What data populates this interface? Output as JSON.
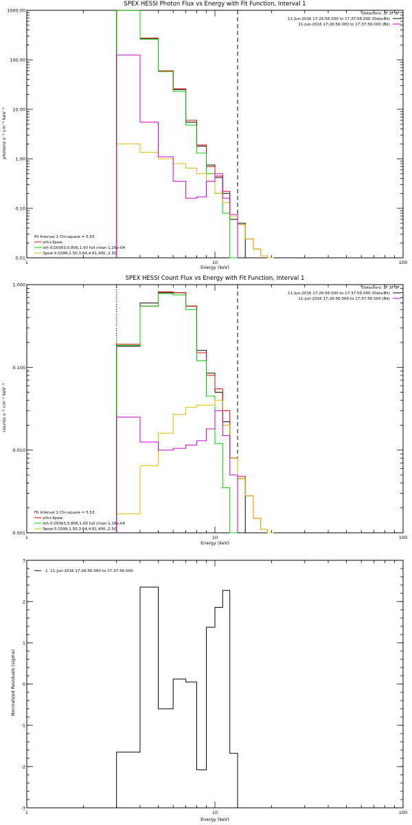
{
  "chart_data": [
    {
      "type": "line",
      "title": "SPEX HESSI Photon Flux vs Energy with Fit Function, Interval 1",
      "xlabel": "Energy (keV)",
      "ylabel": "photons s⁻¹ cm⁻² keV⁻¹",
      "x_scale": "log",
      "y_scale": "log",
      "xlim": [
        1,
        100
      ],
      "ylim": [
        0.01,
        1000
      ],
      "x_ticks": [
        "1",
        "10",
        "100"
      ],
      "y_ticks": [
        "0.01",
        "0.10",
        "1.00",
        "10.00",
        "100.00",
        "1000.00"
      ],
      "y_tick_values": [
        0.01,
        0.1,
        1,
        10,
        100,
        1000
      ],
      "info_lines": [
        {
          "text": "Detectors: 1F 3F 8F",
          "color": ""
        },
        {
          "text": "11-Jun-2016 17:26:56.000 to 17:37:56.000 (Data-Bk)",
          "color": "#000000"
        },
        {
          "text": "11-Jun-2016 17:26:56.000 to 17:37:56.000 (Bk)",
          "color": "#cc00cc"
        }
      ],
      "fit_text": "Fit Interval 1   Chi-square = 5.53",
      "legend": [
        {
          "text": "vth+3pow",
          "color": "#dd0000"
        },
        {
          "text": "vth 0.00363,0.806,1.00  full chian 1.26e-04",
          "color": "#00cc00"
        },
        {
          "text": "3pow 0.0399,1.50,3.64,4.81,400.,2.50",
          "color": "#ddbb00"
        }
      ],
      "vlines": [
        {
          "x": 3.0,
          "style": "dotted",
          "color": "#000000"
        },
        {
          "x": 13.2,
          "style": "dashed",
          "color": "#000000"
        }
      ],
      "bin_edges": [
        3.0,
        4.0,
        5.0,
        6.0,
        7.0,
        8.0,
        9.0,
        10.0,
        11.0,
        12.0,
        13.2,
        14.5,
        16.0,
        17.5,
        19.0,
        20.5
      ],
      "series": [
        {
          "name": "11-Jun-2016 17:26:56.000 to 17:37:56.000 (Data-Bk)",
          "color": "#000000",
          "values": [
            1000,
            270,
            60,
            25,
            5.5,
            1.8,
            0.75,
            0.42,
            0.2,
            0.06,
            0.05,
            null,
            null,
            null,
            null
          ]
        },
        {
          "name": "vth+3pow",
          "color": "#dd0000",
          "values": [
            1000,
            275,
            60,
            26,
            6,
            1.9,
            0.7,
            0.45,
            0.22,
            0.075,
            0.047,
            0.024,
            0.015,
            0.011,
            0.01
          ]
        },
        {
          "name": "vth 0.00363,0.806,1.00  full chian 1.26e-04",
          "color": "#00cc00",
          "values": [
            990,
            260,
            58,
            23,
            4.8,
            1.3,
            0.5,
            0.2,
            0.08,
            0.01,
            null,
            null,
            null,
            null,
            null
          ]
        },
        {
          "name": "3pow 0.0399,1.50,3.64,4.81,400.,2.50",
          "color": "#ddbb00",
          "values": [
            2,
            1.35,
            1.0,
            0.8,
            0.65,
            0.5,
            0.35,
            0.2,
            0.13,
            0.07,
            0.047,
            0.024,
            0.015,
            0.011,
            0.01
          ]
        },
        {
          "name": "11-Jun-2016 17:26:56.000 to 17:37:56.000 (Bk)",
          "color": "#cc00cc",
          "values": [
            125,
            5.5,
            1.1,
            0.35,
            0.16,
            0.17,
            0.35,
            0.5,
            0.16,
            0.075,
            null,
            null,
            null,
            null,
            null
          ]
        }
      ]
    },
    {
      "type": "line",
      "title": "SPEX HESSI Count Flux vs Energy with Fit Function, Interval 1",
      "xlabel": "Energy (keV)",
      "ylabel": "counts s⁻¹ cm⁻² keV⁻¹",
      "x_scale": "log",
      "y_scale": "log",
      "xlim": [
        1,
        100
      ],
      "ylim": [
        0.001,
        1
      ],
      "x_ticks": [
        "1",
        "10",
        "100"
      ],
      "y_ticks": [
        "0.001",
        "0.010",
        "0.100",
        "1.000"
      ],
      "y_tick_values": [
        0.001,
        0.01,
        0.1,
        1
      ],
      "info_lines": [
        {
          "text": "Detectors: 1F 3F 8F",
          "color": ""
        },
        {
          "text": "11-Jun-2016 17:26:56.000 to 17:37:56.000 (Data-Bk)",
          "color": "#000000"
        },
        {
          "text": "11-Jun-2016 17:26:56.000 to 17:37:56.000 (Bk)",
          "color": "#cc00cc"
        }
      ],
      "fit_text": "Fit Interval 1   Chi-square = 5.53",
      "legend": [
        {
          "text": "vth+3pow",
          "color": "#dd0000"
        },
        {
          "text": "vth 0.00363,0.806,1.00  full chian 1.26e-04",
          "color": "#00cc00"
        },
        {
          "text": "3pow 0.0399,1.50,3.64,4.81,400.,2.50",
          "color": "#ddbb00"
        }
      ],
      "vlines": [
        {
          "x": 3.0,
          "style": "dotted",
          "color": "#000000"
        },
        {
          "x": 13.2,
          "style": "dashed",
          "color": "#000000"
        }
      ],
      "bin_edges": [
        3.0,
        4.0,
        5.0,
        6.0,
        7.0,
        8.0,
        9.0,
        10.0,
        11.0,
        12.0,
        13.2,
        14.5,
        16.0,
        17.5,
        19.0,
        20.5
      ],
      "series": [
        {
          "name": "11-Jun-2016 17:26:56.000 to 17:37:56.000 (Data-Bk)",
          "color": "#000000",
          "values": [
            0.18,
            0.6,
            0.8,
            0.8,
            0.55,
            0.16,
            0.085,
            0.05,
            0.022,
            0.008,
            0.0045,
            null,
            null,
            null,
            null
          ]
        },
        {
          "name": "vth+3pow",
          "color": "#dd0000",
          "values": [
            0.19,
            0.55,
            0.82,
            0.8,
            0.55,
            0.15,
            0.08,
            0.055,
            0.03,
            0.008,
            0.0048,
            0.0028,
            0.0015,
            0.0011,
            0.001
          ]
        },
        {
          "name": "vth 0.00363,0.806,1.00  full chian 1.26e-04",
          "color": "#00cc00",
          "values": [
            0.185,
            0.55,
            0.78,
            0.75,
            0.5,
            0.12,
            0.045,
            0.012,
            0.0035,
            0.001,
            null,
            null,
            null,
            null,
            null
          ]
        },
        {
          "name": "3pow 0.0399,1.50,3.64,4.81,400.,2.50",
          "color": "#ddbb00",
          "values": [
            0.0017,
            0.0065,
            0.016,
            0.027,
            0.033,
            0.035,
            0.035,
            0.04,
            0.02,
            0.008,
            0.0045,
            0.0028,
            0.0015,
            0.0011,
            0.001
          ]
        },
        {
          "name": "11-Jun-2016 17:26:56.000 to 17:37:56.000 (Bk)",
          "color": "#cc00cc",
          "values": [
            0.025,
            0.0125,
            0.01,
            0.0105,
            0.0115,
            0.013,
            0.018,
            0.03,
            0.015,
            0.005,
            null,
            null,
            null,
            null,
            null
          ]
        }
      ]
    },
    {
      "type": "line",
      "title": "",
      "xlabel": "Energy (keV)",
      "ylabel": "Normalized Residuals (sigma)",
      "x_scale": "log",
      "y_scale": "linear",
      "xlim": [
        1,
        100
      ],
      "ylim": [
        -3,
        3
      ],
      "x_ticks": [
        "1",
        "10",
        "100"
      ],
      "y_ticks": [
        "-3",
        "-2",
        "-1",
        "0",
        "1",
        "2",
        "3"
      ],
      "y_tick_values": [
        -3,
        -2,
        -1,
        0,
        1,
        2,
        3
      ],
      "legend": [
        {
          "text": "1. 11-Jun-2016 17:26:56.000 to 17:37:56.000",
          "color": "#000000"
        }
      ],
      "vlines": [],
      "bin_edges": [
        3.0,
        4.0,
        5.0,
        6.0,
        7.0,
        8.0,
        9.0,
        10.0,
        11.0,
        12.0,
        13.2
      ],
      "series": [
        {
          "name": "1. 11-Jun-2016 17:26:56.000 to 17:37:56.000",
          "color": "#000000",
          "values": [
            -1.65,
            2.35,
            -0.6,
            0.12,
            0.05,
            -2.08,
            1.38,
            1.86,
            2.27,
            -1.68
          ]
        }
      ]
    }
  ]
}
